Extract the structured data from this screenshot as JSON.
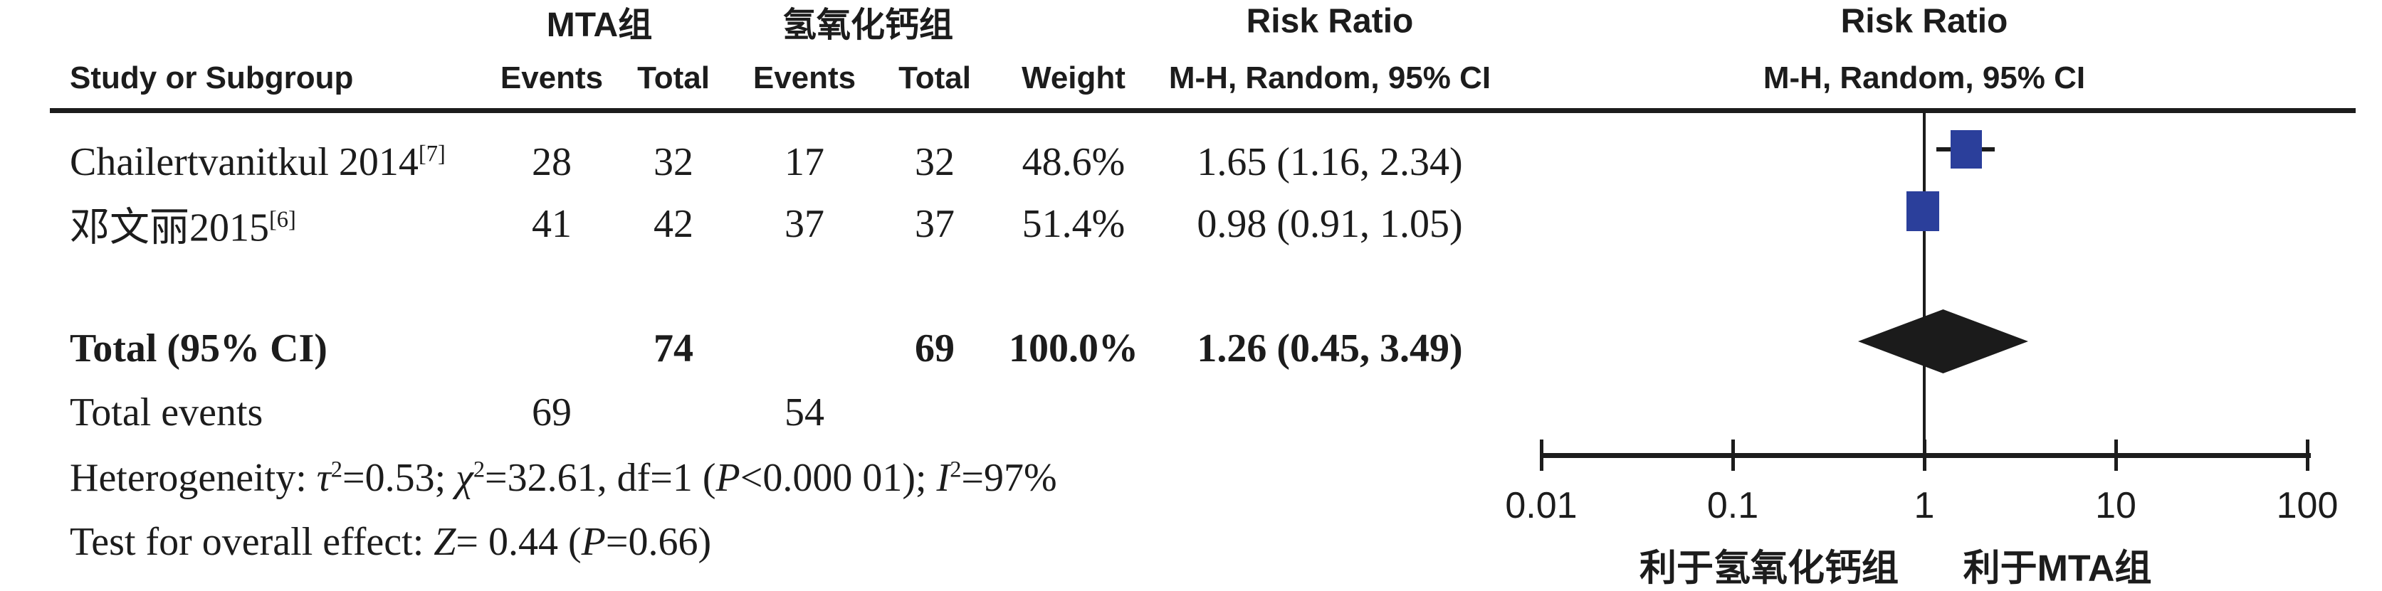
{
  "hdr": {
    "group1": "MTA组",
    "group2": "氢氧化钙组",
    "risk_ratio": "Risk Ratio",
    "study": "Study or Subgroup",
    "events": "Events",
    "total": "Total",
    "weight": "Weight",
    "mh_ci": "M-H, Random, 95% CI"
  },
  "table": {
    "rows": [
      {
        "study": "Chailertvanitkul 2014",
        "ref": "[7]",
        "mta_events": "28",
        "mta_total": "32",
        "caoh_events": "17",
        "caoh_total": "32",
        "weight": "48.6%",
        "rr_text": "1.65 (1.16, 2.34)"
      },
      {
        "study": "邓文丽2015",
        "ref": "[6]",
        "mta_events": "41",
        "mta_total": "42",
        "caoh_events": "37",
        "caoh_total": "37",
        "weight": "51.4%",
        "rr_text": "0.98 (0.91, 1.05)"
      }
    ],
    "total_row": {
      "label": "Total (95% CI)",
      "mta_total": "74",
      "caoh_total": "69",
      "weight": "100.0%",
      "rr_text": "1.26 (0.45, 3.49)"
    },
    "total_events_row": {
      "label": "Total events",
      "mta_events": "69",
      "caoh_events": "54"
    },
    "heterogeneity": [
      {
        "t": "Heterogeneity: "
      },
      {
        "t": "τ",
        "i": true
      },
      {
        "t": "2",
        "sup": true
      },
      {
        "t": "=0.53; "
      },
      {
        "t": "χ",
        "i": true
      },
      {
        "t": "2",
        "sup": true
      },
      {
        "t": "=32.61, df=1 ("
      },
      {
        "t": "P",
        "i": true
      },
      {
        "t": "<0.000 01); "
      },
      {
        "t": "I",
        "i": true
      },
      {
        "t": "2",
        "sup": true
      },
      {
        "t": "=97%"
      }
    ],
    "overall_effect": [
      {
        "t": "Test for overall effect: "
      },
      {
        "t": "Z",
        "i": true
      },
      {
        "t": "= 0.44 ("
      },
      {
        "t": "P",
        "i": true
      },
      {
        "t": "=0.66)"
      }
    ]
  },
  "chart_data": {
    "type": "scatter",
    "subtype": "forest-plot",
    "effect_measure": "Risk Ratio",
    "method": "M-H, Random, 95% CI",
    "x_axis": {
      "scale": "log",
      "range": [
        0.01,
        100
      ],
      "ticks": [
        0.01,
        0.1,
        1,
        10,
        100
      ],
      "labels": [
        "0.01",
        "0.1",
        "1",
        "10",
        "100"
      ]
    },
    "studies": [
      {
        "name": "Chailertvanitkul 2014",
        "rr": 1.65,
        "ci_low": 1.16,
        "ci_high": 2.34,
        "weight_pct": 48.6
      },
      {
        "name": "邓文丽2015",
        "rr": 0.98,
        "ci_low": 0.91,
        "ci_high": 1.05,
        "weight_pct": 51.4
      }
    ],
    "total": {
      "rr": 1.26,
      "ci_low": 0.45,
      "ci_high": 3.49,
      "weight_pct": 100.0
    },
    "favours_left": "利于氢氧化钙组",
    "favours_right": "利于MTA组",
    "marker_color": "#2B3F9B",
    "diamond_color": "#1b1b1b",
    "line_color": "#1c1c1c"
  }
}
